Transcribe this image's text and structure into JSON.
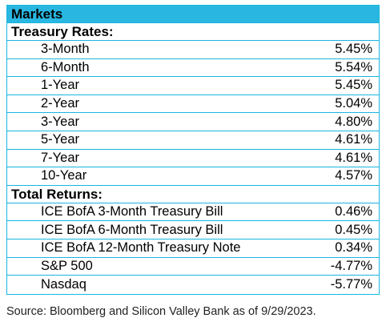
{
  "title": "Markets",
  "treasury": {
    "header": "Treasury Rates:",
    "rows": [
      {
        "label": "3-Month",
        "value": "5.45%"
      },
      {
        "label": "6-Month",
        "value": "5.54%"
      },
      {
        "label": "1-Year",
        "value": "5.45%"
      },
      {
        "label": "2-Year",
        "value": "5.04%"
      },
      {
        "label": "3-Year",
        "value": "4.80%"
      },
      {
        "label": "5-Year",
        "value": "4.61%"
      },
      {
        "label": "7-Year",
        "value": "4.61%"
      },
      {
        "label": "10-Year",
        "value": "4.57%"
      }
    ]
  },
  "returns": {
    "header": "Total Returns:",
    "rows": [
      {
        "label": "ICE BofA 3-Month Treasury Bill",
        "value": "0.46%"
      },
      {
        "label": "ICE BofA 6-Month Treasury Bill",
        "value": "0.45%"
      },
      {
        "label": "ICE BofA 12-Month Treasury Note",
        "value": "0.34%"
      },
      {
        "label": "S&P 500",
        "value": "-4.77%"
      },
      {
        "label": "Nasdaq",
        "value": "-5.77%"
      }
    ]
  },
  "source": "Source: Bloomberg and Silicon Valley Bank as of 9/29/2023.",
  "colors": {
    "header_bg": "#29b7e2",
    "border": "#1ab6e0"
  }
}
